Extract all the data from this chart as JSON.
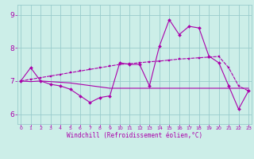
{
  "xlabel": "Windchill (Refroidissement éolien,°C)",
  "background_color": "#cceee8",
  "grid_color": "#99cccc",
  "line_color": "#aa00aa",
  "x_ticks": [
    0,
    1,
    2,
    3,
    4,
    5,
    6,
    7,
    8,
    9,
    10,
    11,
    12,
    13,
    14,
    15,
    16,
    17,
    18,
    19,
    20,
    21,
    22,
    23
  ],
  "y_ticks": [
    6,
    7,
    8,
    9
  ],
  "ylim": [
    5.7,
    9.3
  ],
  "xlim": [
    -0.3,
    23.3
  ],
  "series1_x": [
    0,
    1,
    2,
    3,
    4,
    5,
    6,
    7,
    8,
    9,
    10,
    11,
    12,
    13,
    14,
    15,
    16,
    17,
    18,
    19,
    20,
    21,
    22,
    23
  ],
  "series1_y": [
    7.0,
    7.4,
    7.0,
    6.9,
    6.85,
    6.75,
    6.55,
    6.35,
    6.5,
    6.55,
    7.55,
    7.5,
    7.5,
    6.85,
    8.05,
    8.85,
    8.4,
    8.65,
    8.6,
    7.75,
    7.55,
    6.85,
    6.15,
    6.7
  ],
  "series2_x": [
    0,
    1,
    2,
    3,
    4,
    5,
    6,
    7,
    8,
    9,
    10,
    11,
    12,
    13,
    14,
    15,
    16,
    17,
    18,
    19,
    20,
    21,
    22,
    23
  ],
  "series2_y": [
    7.0,
    7.05,
    7.1,
    7.15,
    7.2,
    7.25,
    7.3,
    7.35,
    7.4,
    7.45,
    7.5,
    7.52,
    7.55,
    7.58,
    7.6,
    7.63,
    7.66,
    7.68,
    7.7,
    7.72,
    7.74,
    7.4,
    6.85,
    6.7
  ],
  "series3_x": [
    0,
    1,
    2,
    3,
    4,
    5,
    6,
    7,
    8,
    9,
    10,
    11,
    12,
    13,
    14,
    15,
    16,
    17,
    18,
    19,
    20,
    21,
    22,
    23
  ],
  "series3_y": [
    7.0,
    6.98,
    7.0,
    6.98,
    6.96,
    6.94,
    6.9,
    6.86,
    6.82,
    6.78,
    6.78,
    6.78,
    6.78,
    6.78,
    6.78,
    6.78,
    6.78,
    6.78,
    6.78,
    6.78,
    6.78,
    6.78,
    6.78,
    6.78
  ]
}
